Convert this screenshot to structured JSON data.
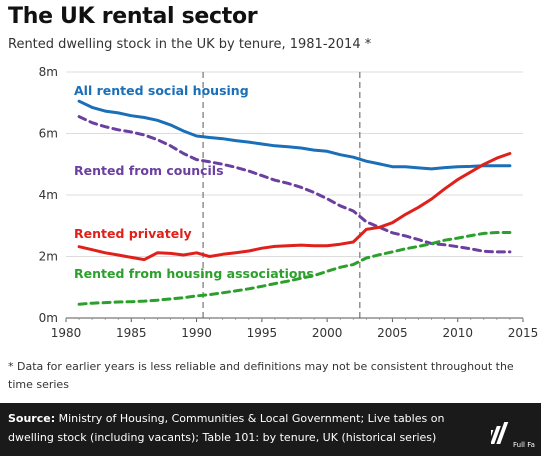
{
  "header": {
    "title": "The UK rental sector",
    "subtitle": "Rented dwelling stock in the UK by tenure, 1981-2014 *"
  },
  "footnote": "* Data for earlier years is less reliable and definitions may not be consistent throughout the time series",
  "footer": {
    "source_label": "Source:",
    "source_text": "Ministry of Housing, Communities & Local Government; Live tables on dwelling stock (including vacants); Table 101: by tenure, UK (historical series)",
    "logo_text": "Full Fact"
  },
  "colors": {
    "social": "#1a6fb8",
    "councils": "#6b3fa0",
    "private": "#e0201a",
    "housing_assoc": "#2ca02c",
    "footer_bg": "#1a1a1a"
  },
  "chart_data": {
    "type": "line",
    "xlabel": "",
    "ylabel": "",
    "xlim": [
      1980,
      2015
    ],
    "ylim": [
      0,
      8
    ],
    "x_ticks": [
      "1980",
      "1985",
      "1990",
      "1995",
      "2000",
      "2005",
      "2010",
      "2015"
    ],
    "y_ticks": [
      "0m",
      "2m",
      "4m",
      "6m",
      "8m"
    ],
    "grid": "horizontal",
    "reference_lines": [
      1990.5,
      2002.5
    ],
    "x": [
      1981,
      1982,
      1983,
      1984,
      1985,
      1986,
      1987,
      1988,
      1989,
      1990,
      1991,
      1992,
      1993,
      1994,
      1995,
      1996,
      1997,
      1998,
      1999,
      2000,
      2001,
      2002,
      2003,
      2004,
      2005,
      2006,
      2007,
      2008,
      2009,
      2010,
      2011,
      2012,
      2013,
      2014
    ],
    "series": [
      {
        "name": "All rented social housing",
        "color": "#1a6fb8",
        "style": "solid",
        "values": [
          7.05,
          6.85,
          6.73,
          6.67,
          6.58,
          6.52,
          6.43,
          6.28,
          6.08,
          5.92,
          5.87,
          5.83,
          5.77,
          5.72,
          5.66,
          5.6,
          5.57,
          5.53,
          5.46,
          5.42,
          5.31,
          5.23,
          5.1,
          5.01,
          4.92,
          4.92,
          4.88,
          4.85,
          4.89,
          4.92,
          4.93,
          4.95,
          4.95,
          4.95
        ]
      },
      {
        "name": "Rented from councils",
        "color": "#6b3fa0",
        "style": "dashed",
        "values": [
          6.55,
          6.35,
          6.22,
          6.12,
          6.05,
          5.95,
          5.8,
          5.6,
          5.35,
          5.15,
          5.08,
          5.0,
          4.9,
          4.78,
          4.63,
          4.48,
          4.38,
          4.25,
          4.08,
          3.88,
          3.65,
          3.48,
          3.13,
          2.95,
          2.77,
          2.67,
          2.55,
          2.42,
          2.38,
          2.32,
          2.25,
          2.17,
          2.15,
          2.15
        ]
      },
      {
        "name": "Rented privately",
        "color": "#e0201a",
        "style": "solid",
        "values": [
          2.32,
          2.22,
          2.12,
          2.05,
          1.97,
          1.9,
          2.12,
          2.1,
          2.05,
          2.12,
          2.0,
          2.07,
          2.12,
          2.18,
          2.27,
          2.33,
          2.35,
          2.37,
          2.35,
          2.35,
          2.4,
          2.47,
          2.88,
          2.95,
          3.1,
          3.37,
          3.6,
          3.87,
          4.2,
          4.5,
          4.75,
          5.0,
          5.2,
          5.35
        ]
      },
      {
        "name": "Rented from housing associations",
        "color": "#2ca02c",
        "style": "dashed",
        "values": [
          0.45,
          0.48,
          0.5,
          0.52,
          0.53,
          0.55,
          0.58,
          0.62,
          0.66,
          0.72,
          0.76,
          0.82,
          0.88,
          0.95,
          1.03,
          1.12,
          1.2,
          1.29,
          1.38,
          1.52,
          1.65,
          1.74,
          1.95,
          2.06,
          2.15,
          2.25,
          2.33,
          2.42,
          2.53,
          2.6,
          2.68,
          2.75,
          2.78,
          2.78
        ]
      }
    ]
  }
}
